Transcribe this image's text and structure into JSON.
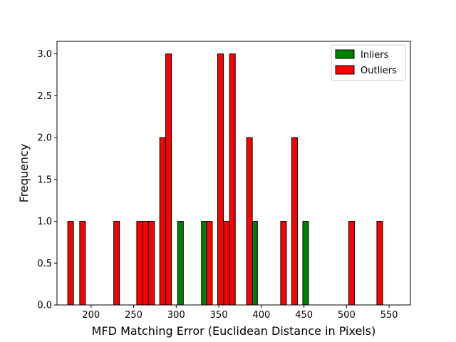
{
  "chart_data": {
    "type": "bar",
    "xlabel": "MFD Matching Error (Euclidean Distance in Pixels)",
    "ylabel": "Frequency",
    "xlim": [
      160,
      575
    ],
    "ylim": [
      0,
      3.15
    ],
    "xticks": [
      200,
      250,
      300,
      350,
      400,
      450,
      500,
      550
    ],
    "yticks": [
      0.0,
      0.5,
      1.0,
      1.5,
      2.0,
      2.5,
      3.0
    ],
    "bar_width": 6.7,
    "legend_position": "top-right",
    "series": [
      {
        "name": "Inliers",
        "color": "#008000",
        "bars": [
          {
            "x": 285,
            "y": 1
          },
          {
            "x": 305,
            "y": 1
          },
          {
            "x": 333,
            "y": 1
          },
          {
            "x": 392,
            "y": 1
          },
          {
            "x": 452,
            "y": 1
          }
        ]
      },
      {
        "name": "Outliers",
        "color": "#ff0000",
        "bars": [
          {
            "x": 176,
            "y": 1
          },
          {
            "x": 190,
            "y": 1
          },
          {
            "x": 230,
            "y": 1
          },
          {
            "x": 257,
            "y": 1
          },
          {
            "x": 264,
            "y": 1
          },
          {
            "x": 271,
            "y": 1
          },
          {
            "x": 284,
            "y": 2
          },
          {
            "x": 291,
            "y": 3
          },
          {
            "x": 339,
            "y": 1
          },
          {
            "x": 352,
            "y": 3
          },
          {
            "x": 359,
            "y": 1
          },
          {
            "x": 366,
            "y": 3
          },
          {
            "x": 386,
            "y": 2
          },
          {
            "x": 426,
            "y": 1
          },
          {
            "x": 439,
            "y": 2
          },
          {
            "x": 506,
            "y": 1
          },
          {
            "x": 539,
            "y": 1
          }
        ]
      }
    ]
  }
}
